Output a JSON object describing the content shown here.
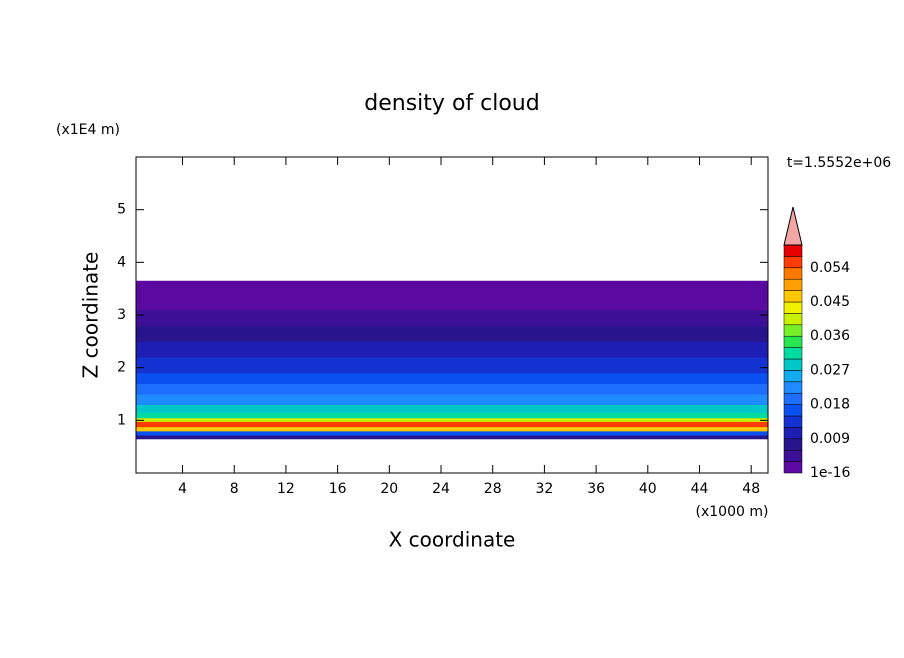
{
  "chart_data": {
    "type": "contour",
    "title": "density of cloud",
    "x_label": "X coordinate",
    "y_label": "Z coordinate",
    "x_unit": "(x1000 m)",
    "y_unit": "(x1E4 m)",
    "time_label": "t=1.5552e+06",
    "xlim": [
      0.4,
      49.3
    ],
    "ylim": [
      0,
      6
    ],
    "xticks": [
      4,
      8,
      12,
      16,
      20,
      24,
      28,
      32,
      36,
      40,
      44,
      48
    ],
    "yticks": [
      1,
      2,
      3,
      4,
      5
    ],
    "z_edges": [
      0.65,
      0.72,
      0.8,
      0.88,
      0.98,
      1.05,
      1.15,
      1.3,
      1.5,
      1.7,
      1.9,
      2.2,
      2.5,
      2.8,
      3.1,
      3.65
    ],
    "values": [
      0.006,
      0.015,
      0.045,
      0.055,
      0.04,
      0.03,
      0.027,
      0.022,
      0.02,
      0.015,
      0.012,
      0.009,
      0.006,
      0.004,
      0.001
    ],
    "levels": [
      1e-16,
      0.003,
      0.006,
      0.009,
      0.012,
      0.015,
      0.018,
      0.021,
      0.024,
      0.027,
      0.03,
      0.033,
      0.036,
      0.039,
      0.042,
      0.045,
      0.048,
      0.051,
      0.054,
      0.057,
      0.06
    ],
    "level_colors": [
      "#5a0aa0",
      "#3c0f96",
      "#28148c",
      "#1e1eb4",
      "#1432d2",
      "#0a50f0",
      "#1e6eff",
      "#1e8cff",
      "#14aaf0",
      "#00c8c8",
      "#00dca0",
      "#28e650",
      "#78f028",
      "#c8f000",
      "#f0f000",
      "#ffc800",
      "#ffa000",
      "#ff7800",
      "#ff3c00",
      "#e60000"
    ],
    "over_color": "#f4a5a5",
    "colorbar_ticks": [
      1e-16,
      0.009,
      0.018,
      0.027,
      0.036,
      0.045,
      0.054
    ]
  }
}
